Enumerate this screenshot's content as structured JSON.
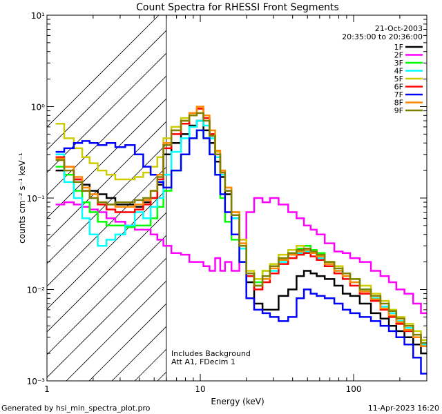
{
  "chart_data": {
    "type": "line",
    "title": "Count Spectra for RHESSI Front Segments",
    "xlabel": "Energy (keV)",
    "ylabel": "counts cm⁻² s⁻¹ keV⁻¹",
    "xscale": "log",
    "yscale": "log",
    "xlim": [
      1,
      300
    ],
    "ylim": [
      0.001,
      10
    ],
    "x_tick_labels": [
      {
        "value": 1,
        "label": "1"
      },
      {
        "value": 10,
        "label": "10"
      },
      {
        "value": 100,
        "label": "100"
      }
    ],
    "y_tick_labels": [
      {
        "value": 0.001,
        "label": "10⁻³"
      },
      {
        "value": 0.01,
        "label": "10⁻²"
      },
      {
        "value": 0.1,
        "label": "10⁻¹"
      },
      {
        "value": 1,
        "label": "10⁰"
      },
      {
        "value": 10,
        "label": "10¹"
      }
    ],
    "date": "21-Oct-2003",
    "time_range": "20:35:00 to 20:36:00",
    "excluded_region_max_keV": 6,
    "annotations": [
      "Includes Background",
      "Att A1, FDecim 1"
    ],
    "footer_left": "Generated by hsi_min_spectra_plot.pro",
    "footer_right": "11-Apr-2023 16:20",
    "energies": [
      1.2,
      1.4,
      1.6,
      1.8,
      2.0,
      2.3,
      2.6,
      3.0,
      3.5,
      4.0,
      4.5,
      5.0,
      5.5,
      6.0,
      7.0,
      8.0,
      9.0,
      10.0,
      11.0,
      12.0,
      13.0,
      14.0,
      15.0,
      17.0,
      19.0,
      21.0,
      24.0,
      27.0,
      30.0,
      35.0,
      40.0,
      45.0,
      50.0,
      55.0,
      60.0,
      70.0,
      80.0,
      90.0,
      100.0,
      120.0,
      140.0,
      160.0,
      180.0,
      200.0,
      230.0,
      260.0,
      290.0
    ],
    "series": [
      {
        "name": "1F",
        "color": "#000000",
        "values": [
          0.2,
          0.18,
          0.16,
          0.14,
          0.12,
          0.11,
          0.1,
          0.085,
          0.085,
          0.08,
          0.09,
          0.1,
          0.14,
          0.3,
          0.4,
          0.5,
          0.62,
          0.7,
          0.55,
          0.4,
          0.25,
          0.17,
          0.11,
          0.06,
          0.03,
          0.012,
          0.007,
          0.006,
          0.006,
          0.0085,
          0.01,
          0.014,
          0.016,
          0.015,
          0.014,
          0.013,
          0.011,
          0.009,
          0.0085,
          0.007,
          0.0055,
          0.0048,
          0.004,
          0.0035,
          0.003,
          0.0025,
          0.002
        ]
      },
      {
        "name": "2F",
        "color": "#ff00ff",
        "values": [
          0.085,
          0.09,
          0.085,
          0.08,
          0.075,
          0.07,
          0.06,
          0.055,
          0.05,
          0.045,
          0.045,
          0.04,
          0.035,
          0.03,
          0.025,
          0.024,
          0.02,
          0.02,
          0.018,
          0.016,
          0.022,
          0.016,
          0.02,
          0.016,
          0.035,
          0.07,
          0.1,
          0.09,
          0.1,
          0.085,
          0.07,
          0.06,
          0.05,
          0.045,
          0.04,
          0.032,
          0.026,
          0.025,
          0.022,
          0.02,
          0.016,
          0.014,
          0.012,
          0.01,
          0.009,
          0.007,
          0.0055
        ]
      },
      {
        "name": "3F",
        "color": "#00ff00",
        "values": [
          0.22,
          0.18,
          0.12,
          0.09,
          0.07,
          0.055,
          0.05,
          0.05,
          0.048,
          0.05,
          0.05,
          0.06,
          0.08,
          0.12,
          0.2,
          0.3,
          0.45,
          0.55,
          0.45,
          0.3,
          0.18,
          0.1,
          0.055,
          0.035,
          0.02,
          0.015,
          0.012,
          0.016,
          0.018,
          0.022,
          0.025,
          0.028,
          0.03,
          0.027,
          0.025,
          0.02,
          0.018,
          0.015,
          0.013,
          0.01,
          0.008,
          0.0065,
          0.005,
          0.0042,
          0.0035,
          0.003,
          0.0025
        ]
      },
      {
        "name": "4F",
        "color": "#00ffff",
        "values": [
          0.3,
          0.15,
          0.1,
          0.06,
          0.04,
          0.03,
          0.035,
          0.04,
          0.05,
          0.07,
          0.06,
          0.08,
          0.1,
          0.18,
          0.32,
          0.45,
          0.6,
          0.7,
          0.62,
          0.45,
          0.28,
          0.18,
          0.12,
          0.06,
          0.028,
          0.014,
          0.011,
          0.013,
          0.016,
          0.02,
          0.024,
          0.025,
          0.026,
          0.025,
          0.022,
          0.019,
          0.016,
          0.013,
          0.012,
          0.01,
          0.008,
          0.0065,
          0.0055,
          0.0045,
          0.0038,
          0.003,
          0.0025
        ]
      },
      {
        "name": "5F",
        "color": "#cccc00",
        "values": [
          0.65,
          0.45,
          0.35,
          0.28,
          0.24,
          0.2,
          0.18,
          0.16,
          0.16,
          0.17,
          0.19,
          0.22,
          0.28,
          0.45,
          0.6,
          0.75,
          0.85,
          0.95,
          0.75,
          0.5,
          0.32,
          0.2,
          0.13,
          0.07,
          0.035,
          0.016,
          0.013,
          0.016,
          0.019,
          0.024,
          0.027,
          0.03,
          0.028,
          0.026,
          0.024,
          0.02,
          0.018,
          0.015,
          0.013,
          0.011,
          0.009,
          0.0075,
          0.006,
          0.005,
          0.0042,
          0.0035,
          0.0028
        ]
      },
      {
        "name": "6F",
        "color": "#ff0000",
        "values": [
          0.28,
          0.22,
          0.16,
          0.12,
          0.1,
          0.085,
          0.075,
          0.07,
          0.07,
          0.075,
          0.085,
          0.1,
          0.16,
          0.35,
          0.5,
          0.65,
          0.85,
          0.95,
          0.75,
          0.5,
          0.3,
          0.19,
          0.12,
          0.065,
          0.03,
          0.014,
          0.01,
          0.012,
          0.015,
          0.019,
          0.022,
          0.024,
          0.025,
          0.023,
          0.021,
          0.018,
          0.015,
          0.013,
          0.011,
          0.009,
          0.0075,
          0.006,
          0.005,
          0.0042,
          0.0035,
          0.003,
          0.0024
        ]
      },
      {
        "name": "7F",
        "color": "#0000ff",
        "values": [
          0.32,
          0.35,
          0.4,
          0.42,
          0.4,
          0.38,
          0.4,
          0.36,
          0.38,
          0.3,
          0.22,
          0.18,
          0.15,
          0.13,
          0.2,
          0.3,
          0.45,
          0.55,
          0.45,
          0.3,
          0.18,
          0.11,
          0.07,
          0.04,
          0.02,
          0.008,
          0.006,
          0.0055,
          0.005,
          0.0045,
          0.005,
          0.008,
          0.01,
          0.009,
          0.0085,
          0.008,
          0.007,
          0.006,
          0.0055,
          0.005,
          0.0045,
          0.004,
          0.0035,
          0.003,
          0.0025,
          0.0018,
          0.0012
        ]
      },
      {
        "name": "8F",
        "color": "#ff8800",
        "values": [
          0.27,
          0.22,
          0.17,
          0.13,
          0.11,
          0.09,
          0.085,
          0.08,
          0.08,
          0.085,
          0.095,
          0.12,
          0.18,
          0.4,
          0.55,
          0.7,
          0.85,
          1.0,
          0.8,
          0.55,
          0.33,
          0.2,
          0.13,
          0.07,
          0.032,
          0.015,
          0.011,
          0.013,
          0.017,
          0.021,
          0.024,
          0.026,
          0.027,
          0.025,
          0.023,
          0.019,
          0.016,
          0.014,
          0.012,
          0.0095,
          0.0078,
          0.0062,
          0.0052,
          0.0044,
          0.0036,
          0.003,
          0.0024
        ]
      },
      {
        "name": "9F",
        "color": "#808000",
        "values": [
          0.26,
          0.2,
          0.15,
          0.12,
          0.1,
          0.09,
          0.085,
          0.09,
          0.09,
          0.095,
          0.1,
          0.12,
          0.17,
          0.38,
          0.55,
          0.7,
          0.8,
          0.85,
          0.7,
          0.48,
          0.3,
          0.19,
          0.12,
          0.065,
          0.03,
          0.015,
          0.011,
          0.014,
          0.018,
          0.022,
          0.025,
          0.027,
          0.028,
          0.026,
          0.024,
          0.02,
          0.017,
          0.015,
          0.013,
          0.01,
          0.0085,
          0.007,
          0.0058,
          0.0048,
          0.004,
          0.0032,
          0.0026
        ]
      }
    ]
  }
}
